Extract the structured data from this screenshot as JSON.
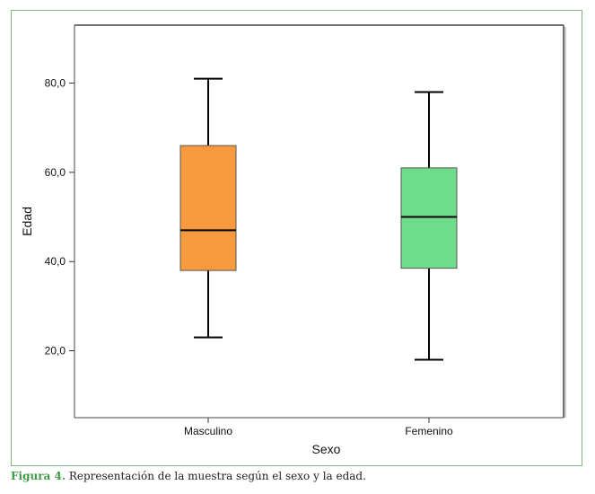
{
  "chart_data": {
    "type": "boxplot",
    "xlabel": "Sexo",
    "ylabel": "Edad",
    "ylim": [
      5,
      93
    ],
    "yticks": [
      20,
      40,
      60,
      80
    ],
    "ytick_labels": [
      "20,0",
      "40,0",
      "60,0",
      "80,0"
    ],
    "grid": false,
    "categories": [
      "Masculino",
      "Femenino"
    ],
    "boxes": [
      {
        "category": "Masculino",
        "min": 23,
        "q1": 38,
        "median": 47,
        "q3": 66,
        "max": 81,
        "color": "#f79a3e"
      },
      {
        "category": "Femenino",
        "min": 18,
        "q1": 38.5,
        "median": 50,
        "q3": 61,
        "max": 78,
        "color": "#6fdc8c"
      }
    ]
  },
  "caption": {
    "label": "Figura 4.",
    "text": " Representación de la muestra según el sexo y la edad."
  },
  "colors": {
    "frame_border": "#7cb67c",
    "caption_label": "#3e9a43"
  }
}
